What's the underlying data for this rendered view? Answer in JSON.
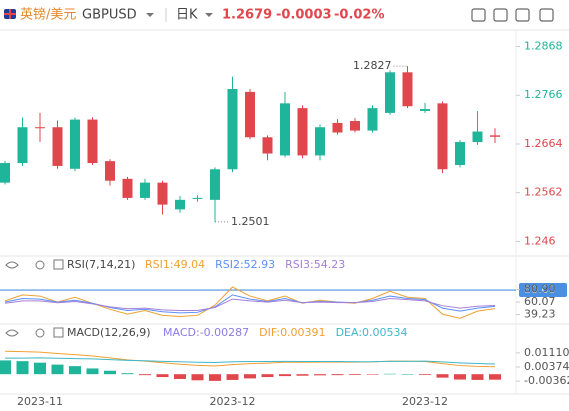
{
  "header": {
    "pair": "英镑/美元",
    "symbol": "GBPUSD",
    "period": "日K",
    "change": -0.0003,
    "change_pct": {
      "value": -0.02,
      "label": "-0.02%"
    }
  },
  "chart_data": [
    {
      "type": "candlestick",
      "categories": [
        null,
        null,
        "2023-11",
        null,
        null,
        null,
        null,
        null,
        null,
        null,
        null,
        null,
        null,
        "2023-12",
        null,
        null,
        null,
        null,
        null,
        null,
        null,
        null,
        null,
        null,
        "2023-12",
        null,
        null,
        null,
        null
      ],
      "open": [
        1.2583,
        1.2624,
        1.2699,
        1.2699,
        1.2612,
        1.2715,
        1.2628,
        1.2591,
        1.2551,
        1.2583,
        1.2527,
        1.2549,
        1.2547,
        1.2611,
        1.2773,
        1.2678,
        1.264,
        1.2739,
        1.264,
        1.2708,
        1.2712,
        1.2692,
        1.2729,
        1.2814,
        1.2733,
        1.2749,
        1.262,
        1.2668,
        1.2682
      ],
      "high": [
        1.2628,
        1.2719,
        1.2729,
        1.2713,
        1.2719,
        1.272,
        1.2632,
        1.2595,
        1.2591,
        1.2587,
        1.2555,
        1.2557,
        1.2615,
        1.2805,
        1.2779,
        1.2682,
        1.2773,
        1.2745,
        1.2705,
        1.2716,
        1.2718,
        1.2745,
        1.2818,
        1.2827,
        1.275,
        1.2753,
        1.2672,
        1.2733,
        1.2697
      ],
      "low": [
        1.2579,
        1.2618,
        1.2668,
        1.2612,
        1.2607,
        1.262,
        1.2577,
        1.2547,
        1.2547,
        1.2516,
        1.252,
        1.2543,
        1.2501,
        1.2605,
        1.2674,
        1.263,
        1.2636,
        1.2634,
        1.263,
        1.2684,
        1.2688,
        1.2688,
        1.2725,
        1.2739,
        1.2729,
        1.2603,
        1.2615,
        1.2662,
        1.2666
      ],
      "close": [
        1.2624,
        1.2699,
        1.2697,
        1.2618,
        1.2715,
        1.2624,
        1.2587,
        1.2551,
        1.2583,
        1.2537,
        1.2547,
        1.2551,
        1.2611,
        1.2779,
        1.2678,
        1.2644,
        1.2749,
        1.264,
        1.2699,
        1.2688,
        1.2692,
        1.2739,
        1.2814,
        1.2743,
        1.2737,
        1.2611,
        1.2668,
        1.269,
        1.2679
      ],
      "up_color": "#1fb59a",
      "down_color": "#e0474c",
      "ylim": [
        1.2442,
        1.289
      ],
      "yticks": [
        1.2868,
        1.2766,
        1.2664,
        1.2562,
        1.246
      ],
      "grid": false
    },
    {
      "type": "line",
      "title": "RSI(7,14,21)",
      "series": [
        {
          "name": "RSI1:",
          "color": "#f0a030",
          "values": [
            62,
            72,
            70,
            60,
            68,
            58,
            48,
            40,
            46,
            38,
            36,
            38,
            55,
            85,
            70,
            62,
            70,
            58,
            63,
            60,
            58,
            66,
            78,
            68,
            66,
            40,
            33,
            45,
            49.04
          ]
        },
        {
          "name": "RSI2:",
          "color": "#5b8ff9",
          "values": [
            60,
            66,
            65,
            60,
            63,
            58,
            51,
            46,
            48,
            44,
            42,
            43,
            52,
            72,
            65,
            61,
            66,
            59,
            61,
            60,
            59,
            63,
            70,
            66,
            64,
            50,
            45,
            50,
            52.93
          ]
        },
        {
          "name": "RSI3:",
          "color": "#a77fd8",
          "values": [
            58,
            62,
            62,
            59,
            61,
            57,
            52,
            49,
            50,
            47,
            46,
            46,
            51,
            65,
            62,
            60,
            63,
            59,
            60,
            59,
            59,
            61,
            66,
            64,
            62,
            54,
            50,
            53,
            54.23
          ]
        }
      ],
      "ylim": [
        26.9,
        110
      ],
      "yticks": [
        {
          "value": 80.9,
          "label": "80.90"
        },
        60.07,
        39.23
      ],
      "levels": [
        {
          "value": 80,
          "label": "80.00",
          "color": "#4a90e2"
        }
      ]
    },
    {
      "type": "macd",
      "title": "MACD(12,26,9)",
      "series": [
        {
          "name": "MACD:",
          "kind": "bar",
          "color": "#8c7ae6",
          "up_color": "#1fb59a",
          "down_color": "#e0474c",
          "values": [
            0.0072,
            0.0068,
            0.006,
            0.005,
            0.0042,
            0.003,
            0.0018,
            0.0005,
            -0.0005,
            -0.0015,
            -0.0025,
            -0.0032,
            -0.0035,
            -0.003,
            -0.0022,
            -0.0015,
            -0.001,
            -0.0008,
            -0.0006,
            -0.0005,
            -0.0004,
            -0.0002,
            0.0002,
            0.0001,
            -0.0004,
            -0.0018,
            -0.0028,
            -0.003,
            -0.00287
          ]
        },
        {
          "name": "DIF:",
          "kind": "line",
          "color": "#f0a030",
          "values": [
            0.012,
            0.0118,
            0.0115,
            0.0108,
            0.0102,
            0.0095,
            0.0085,
            0.0075,
            0.0068,
            0.006,
            0.0052,
            0.0046,
            0.0043,
            0.005,
            0.0055,
            0.0058,
            0.0062,
            0.0062,
            0.0063,
            0.0063,
            0.0063,
            0.0064,
            0.0068,
            0.0068,
            0.0066,
            0.0055,
            0.0045,
            0.0041,
            0.00391
          ]
        },
        {
          "name": "DEA:",
          "kind": "line",
          "color": "#3fb8c8",
          "values": [
            0.0084,
            0.0084,
            0.0085,
            0.0083,
            0.0081,
            0.008,
            0.0076,
            0.0072,
            0.007,
            0.0067,
            0.0065,
            0.0062,
            0.0061,
            0.0065,
            0.0066,
            0.0066,
            0.0067,
            0.0066,
            0.0066,
            0.0066,
            0.0065,
            0.0065,
            0.0067,
            0.0067,
            0.0068,
            0.0064,
            0.0059,
            0.0056,
            0.00534
          ]
        }
      ],
      "ylim": [
        -0.0093,
        0.0168
      ],
      "yticks": [
        {
          "value": 0.0111,
          "label": "0.01110"
        },
        0.00374,
        -0.00362
      ]
    }
  ]
}
